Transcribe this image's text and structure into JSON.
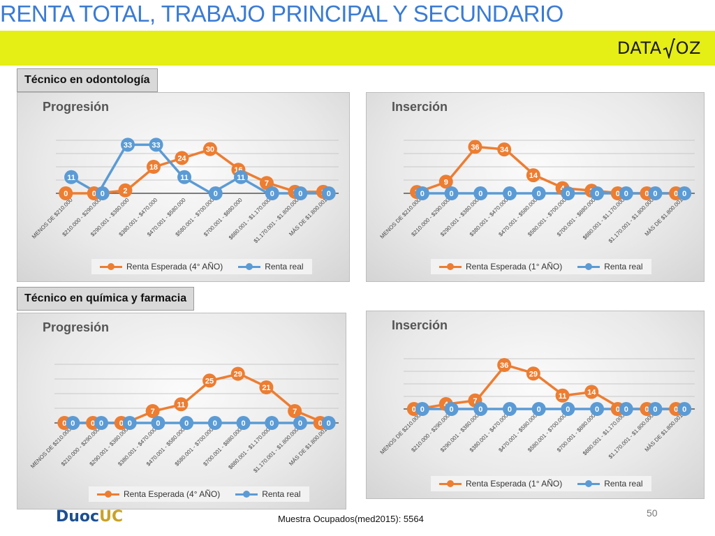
{
  "header": {
    "title": "RENTA TOTAL, TRABAJO PRINCIPAL Y SECUNDARIO",
    "logo_text_left": "DATA",
    "logo_text_right": "OZ"
  },
  "sections": [
    {
      "label": "Técnico en odontología"
    },
    {
      "label": "Técnico en química y farmacia"
    }
  ],
  "colors": {
    "expected": "#ed7d31",
    "real": "#5b9bd5"
  },
  "chart_data": [
    {
      "type": "line",
      "title": "Progresión",
      "categories": [
        "MENOS DE $210.000",
        "$210.000 - $290.000",
        "$290.001 - $380.000",
        "$380.001 - $470.000",
        "$470.001 - $580.000",
        "$580.001 - $700.000",
        "$700.001 - $880.000",
        "$880.001 - $1.170.000",
        "$1.170.001 - $1.800.000",
        "MÁS DE $1.800.001"
      ],
      "series": [
        {
          "name": "Renta Esperada (4° AÑO)",
          "values": [
            0,
            0,
            2,
            18,
            24,
            30,
            16,
            7,
            1,
            1
          ]
        },
        {
          "name": "Renta real",
          "values": [
            11,
            0,
            33,
            33,
            11,
            0,
            11,
            0,
            0,
            0
          ]
        }
      ],
      "ylim": [
        0,
        36
      ],
      "grid": true,
      "legend": "bottom"
    },
    {
      "type": "line",
      "title": "Inserción",
      "categories": [
        "MENOS DE $210.000",
        "$210.000 - $290.000",
        "$290.001 - $380.000",
        "$380.001 - $470.000",
        "$470.001 - $580.000",
        "$580.001 - $700.000",
        "$700.001 - $880.000",
        "$880.001 - $1.170.000",
        "$1.170.001 - $1.800.000",
        "MÁS DE $1.800.001"
      ],
      "series": [
        {
          "name": "Renta Esperada (1° AÑO)",
          "values": [
            1,
            9,
            36,
            34,
            14,
            4,
            2,
            0,
            0,
            0
          ]
        },
        {
          "name": "Renta real",
          "values": [
            0,
            0,
            0,
            0,
            0,
            0,
            0,
            0,
            0,
            0
          ]
        }
      ],
      "ylim": [
        0,
        40
      ],
      "grid": true,
      "legend": "bottom"
    },
    {
      "type": "line",
      "title": "Progresión",
      "categories": [
        "MENOS DE $210.000",
        "$210.000 - $290.000",
        "$290.001 - $380.000",
        "$380.001 - $470.000",
        "$470.001 - $580.000",
        "$580.001 - $700.000",
        "$700.001 - $880.000",
        "$880.001 - $1.170.000",
        "$1.170.001 - $1.800.000",
        "MÁS DE $1.800.001"
      ],
      "series": [
        {
          "name": "Renta Esperada (4° AÑO)",
          "values": [
            0,
            0,
            0,
            7,
            11,
            25,
            29,
            21,
            7,
            0
          ]
        },
        {
          "name": "Renta real",
          "values": [
            0,
            0,
            0,
            0,
            0,
            0,
            0,
            0,
            0,
            0
          ]
        }
      ],
      "ylim": [
        0,
        35
      ],
      "grid": true,
      "legend": "bottom"
    },
    {
      "type": "line",
      "title": "Inserción",
      "categories": [
        "MENOS DE $210.000",
        "$210.000 - $290.000",
        "$290.001 - $380.000",
        "$380.001 - $470.000",
        "$470.001 - $580.000",
        "$580.001 - $700.000",
        "$700.001 - $880.000",
        "$880.001 - $1.170.000",
        "$1.170.001 - $1.800.000",
        "MÁS DE $1.800.001"
      ],
      "series": [
        {
          "name": "Renta Esperada (1° AÑO)",
          "values": [
            0,
            4,
            7,
            36,
            29,
            11,
            14,
            0,
            0,
            0
          ]
        },
        {
          "name": "Renta real",
          "values": [
            0,
            0,
            0,
            0,
            0,
            0,
            0,
            0,
            0,
            0
          ]
        }
      ],
      "ylim": [
        0,
        40
      ],
      "grid": true,
      "legend": "bottom"
    }
  ],
  "footer": {
    "note": "Muestra Ocupados(med2015): 5564",
    "page_number": "50",
    "brand_main": "Duoc",
    "brand_accent": "UC"
  }
}
